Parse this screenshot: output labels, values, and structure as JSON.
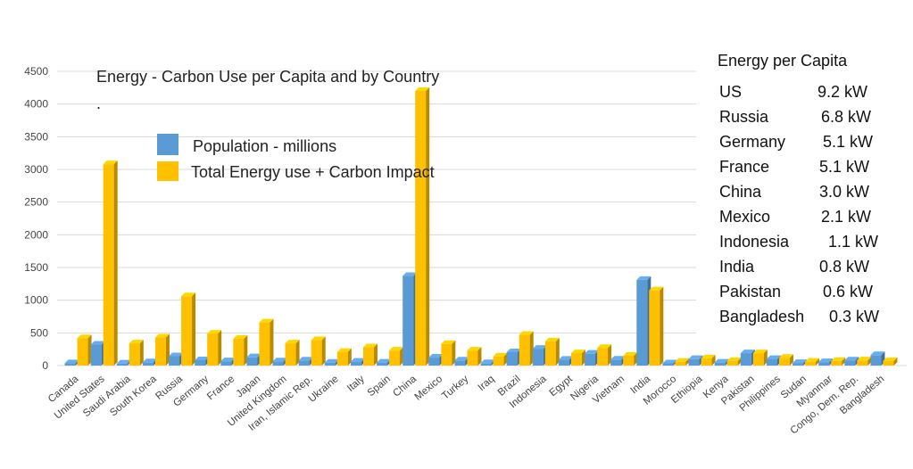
{
  "chart_data": {
    "type": "bar",
    "title": "Energy - Carbon Use per Capita and by Country",
    "title_mark": ".",
    "xlabel": "",
    "ylabel": "",
    "ylim": [
      0,
      4500
    ],
    "yticks": [
      0,
      500,
      1000,
      1500,
      2000,
      2500,
      3000,
      3500,
      4000,
      4500
    ],
    "grid": true,
    "legend_position": "top-left",
    "categories": [
      "Canada",
      "United States",
      "Saudi Arabia",
      "South Korea",
      "Russia",
      "Germany",
      "France",
      "Japan",
      "United Kingdom",
      "Iran, Islamic Rep.",
      "Ukraine",
      "Italy",
      "Spain",
      "China",
      "Mexico",
      "Turkey",
      "Iraq",
      "Brazil",
      "Indonesia",
      "Egypt",
      "Nigeria",
      "Vietnam",
      "India",
      "Morocco",
      "Ethiopia",
      "Kenya",
      "Pakistan",
      "Philippines",
      "Sudan",
      "Myanmar",
      "Congo, Dem. Rep.",
      "Bangladesh"
    ],
    "series": [
      {
        "name": "Population - millions",
        "color": "#5b9bd5",
        "values": [
          36,
          320,
          32,
          51,
          144,
          82,
          66,
          127,
          65,
          79,
          45,
          60,
          46,
          1370,
          122,
          78,
          37,
          205,
          258,
          91,
          182,
          92,
          1310,
          34,
          100,
          46,
          190,
          101,
          40,
          53,
          79,
          160
        ]
      },
      {
        "name": "Total Energy use + Carbon Impact",
        "color": "#ffc000",
        "values": [
          420,
          3080,
          340,
          430,
          1060,
          490,
          410,
          660,
          340,
          390,
          210,
          280,
          230,
          4200,
          330,
          230,
          140,
          470,
          370,
          190,
          270,
          150,
          1150,
          60,
          110,
          70,
          190,
          120,
          60,
          70,
          80,
          70
        ]
      }
    ]
  },
  "per_capita_panel": {
    "title": "Energy per Capita",
    "rows": [
      {
        "country": "US",
        "value": "9.2 kW"
      },
      {
        "country": "Russia",
        "value": "6.8 kW"
      },
      {
        "country": "Germany",
        "value": "5.1 kW"
      },
      {
        "country": "France",
        "value": "5.1 kW"
      },
      {
        "country": "China",
        "value": "3.0 kW"
      },
      {
        "country": "Mexico",
        "value": "2.1 kW"
      },
      {
        "country": "Indonesia",
        "value": "1.1 kW"
      },
      {
        "country": "India",
        "value": "0.8 kW"
      },
      {
        "country": "Pakistan",
        "value": "0.6 kW"
      },
      {
        "country": "Bangladesh",
        "value": "0.3 kW"
      }
    ]
  }
}
